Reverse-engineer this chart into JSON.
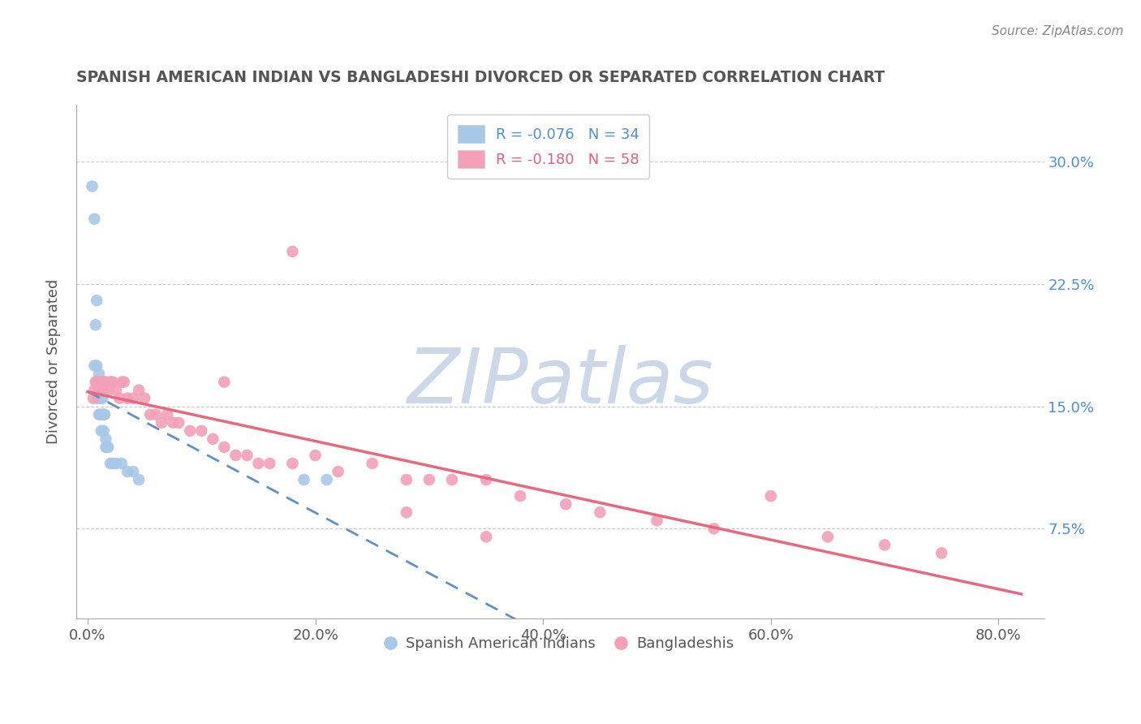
{
  "title": "SPANISH AMERICAN INDIAN VS BANGLADESHI DIVORCED OR SEPARATED CORRELATION CHART",
  "source": "Source: ZipAtlas.com",
  "ylabel": "Divorced or Separated",
  "xlabel_ticks": [
    "0.0%",
    "20.0%",
    "40.0%",
    "60.0%",
    "80.0%"
  ],
  "xlabel_vals": [
    0.0,
    0.2,
    0.4,
    0.6,
    0.8
  ],
  "ylabel_ticks": [
    "7.5%",
    "15.0%",
    "22.5%",
    "30.0%"
  ],
  "ylabel_vals": [
    0.075,
    0.15,
    0.225,
    0.3
  ],
  "xlim": [
    -0.01,
    0.84
  ],
  "ylim": [
    0.02,
    0.335
  ],
  "legend_blue_label": "R = -0.076   N = 34",
  "legend_pink_label": "R = -0.180   N = 58",
  "blue_color": "#a8c8e8",
  "pink_color": "#f4a0b8",
  "blue_line_color": "#6090c8",
  "pink_line_color": "#e86880",
  "title_color": "#555555",
  "source_color": "#888888",
  "legend_blue_text_color": "#4a90d9",
  "legend_pink_text_color": "#e06080",
  "right_tick_color": "#4a90d9",
  "watermark_text": "ZIPatlas",
  "watermark_color": "#ccd8e8",
  "blue_x": [
    0.004,
    0.006,
    0.008,
    0.006,
    0.007,
    0.008,
    0.008,
    0.009,
    0.01,
    0.01,
    0.009,
    0.01,
    0.011,
    0.011,
    0.012,
    0.012,
    0.013,
    0.013,
    0.014,
    0.014,
    0.015,
    0.016,
    0.016,
    0.017,
    0.018,
    0.02,
    0.022,
    0.025,
    0.03,
    0.035,
    0.04,
    0.045,
    0.19,
    0.21
  ],
  "blue_y": [
    0.285,
    0.265,
    0.215,
    0.175,
    0.2,
    0.175,
    0.165,
    0.155,
    0.17,
    0.16,
    0.155,
    0.145,
    0.155,
    0.145,
    0.155,
    0.135,
    0.155,
    0.145,
    0.145,
    0.135,
    0.145,
    0.13,
    0.125,
    0.125,
    0.125,
    0.115,
    0.115,
    0.115,
    0.115,
    0.11,
    0.11,
    0.105,
    0.105,
    0.105
  ],
  "pink_x": [
    0.005,
    0.006,
    0.007,
    0.008,
    0.009,
    0.01,
    0.011,
    0.012,
    0.013,
    0.014,
    0.015,
    0.016,
    0.018,
    0.02,
    0.022,
    0.025,
    0.028,
    0.03,
    0.032,
    0.035,
    0.04,
    0.045,
    0.05,
    0.055,
    0.06,
    0.065,
    0.07,
    0.075,
    0.08,
    0.09,
    0.1,
    0.11,
    0.12,
    0.13,
    0.14,
    0.15,
    0.16,
    0.18,
    0.2,
    0.22,
    0.25,
    0.28,
    0.3,
    0.32,
    0.35,
    0.38,
    0.42,
    0.45,
    0.5,
    0.55,
    0.6,
    0.65,
    0.7,
    0.75,
    0.35,
    0.18,
    0.12,
    0.28
  ],
  "pink_y": [
    0.155,
    0.16,
    0.165,
    0.165,
    0.165,
    0.16,
    0.16,
    0.165,
    0.165,
    0.16,
    0.165,
    0.165,
    0.16,
    0.165,
    0.165,
    0.16,
    0.155,
    0.165,
    0.165,
    0.155,
    0.155,
    0.16,
    0.155,
    0.145,
    0.145,
    0.14,
    0.145,
    0.14,
    0.14,
    0.135,
    0.135,
    0.13,
    0.125,
    0.12,
    0.12,
    0.115,
    0.115,
    0.115,
    0.12,
    0.11,
    0.115,
    0.105,
    0.105,
    0.105,
    0.105,
    0.095,
    0.09,
    0.085,
    0.08,
    0.075,
    0.095,
    0.07,
    0.065,
    0.06,
    0.07,
    0.245,
    0.165,
    0.085
  ]
}
